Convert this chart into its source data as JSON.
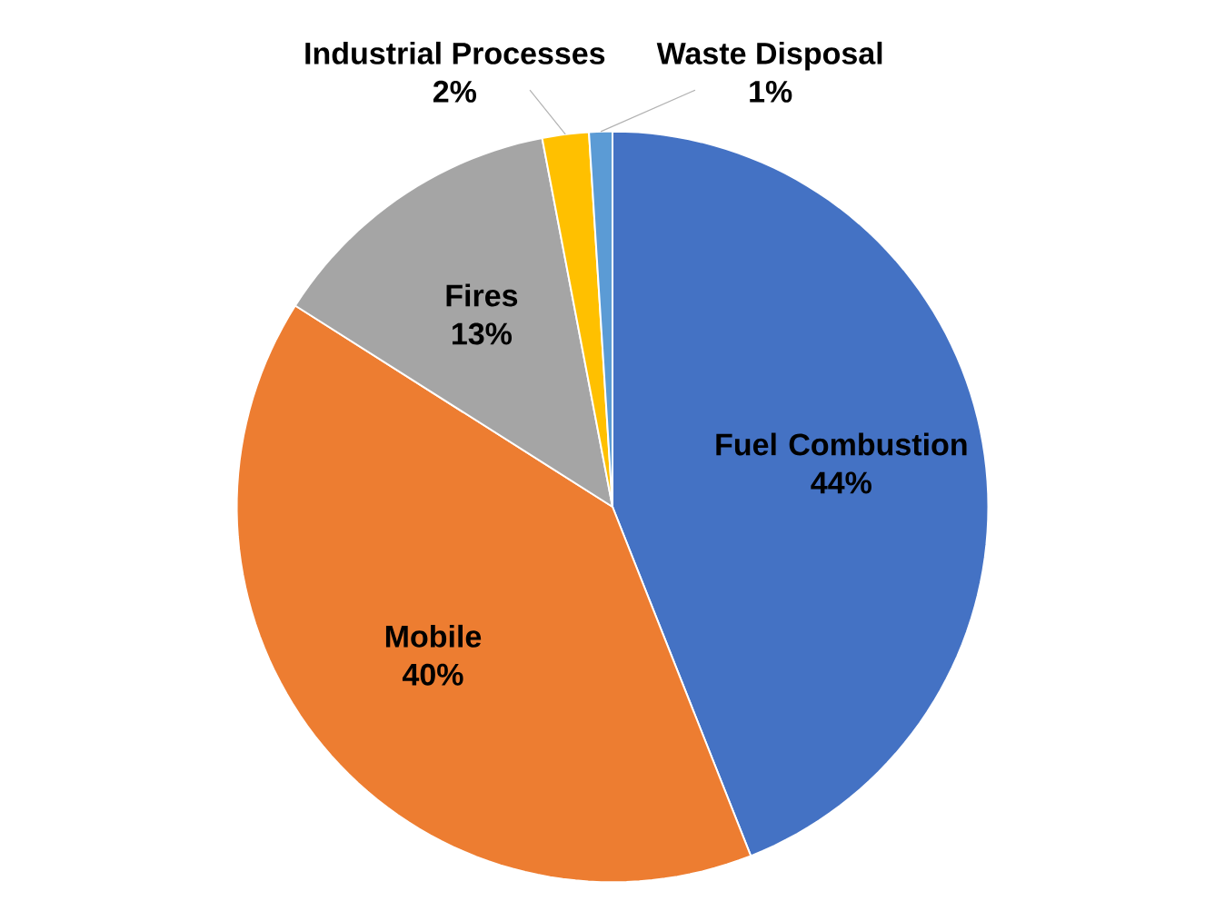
{
  "chart_data": {
    "type": "pie",
    "categories": [
      "Fuel Combustion",
      "Mobile",
      "Fires",
      "Industrial Processes",
      "Waste Disposal"
    ],
    "values": [
      44,
      40,
      13,
      2,
      1
    ],
    "colors": [
      "#4472c4",
      "#ed7d31",
      "#a5a5a5",
      "#ffc000",
      "#5b9bd5"
    ],
    "value_labels": [
      "44%",
      "40%",
      "13%",
      "2%",
      "1%"
    ]
  }
}
